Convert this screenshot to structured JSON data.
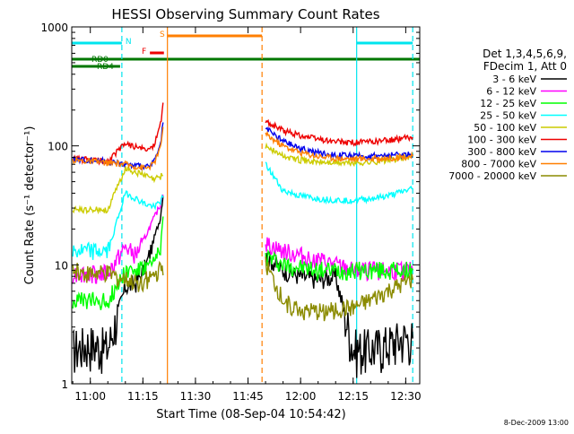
{
  "chart_data": {
    "type": "line",
    "title": "HESSI Observing Summary Count Rates",
    "xlabel": "Start Time (08-Sep-04 10:54:42)",
    "ylabel": "Count Rate (s⁻¹ detector⁻¹)",
    "yscale": "log",
    "ylim": [
      1,
      1000
    ],
    "xlim": [
      "10:54:42",
      "12:34:00"
    ],
    "x_ticks": [
      "11:00",
      "11:15",
      "11:30",
      "11:45",
      "12:00",
      "12:15",
      "12:30"
    ],
    "y_ticks": [
      "1",
      "10",
      "100",
      "1000"
    ],
    "grid": false,
    "legend_position": "right",
    "legend_header": [
      "Det 1,3,4,5,6,9,",
      "FDecim 1, Att 0"
    ],
    "date_stamp": "8-Dec-2009 13:00",
    "flags": [
      {
        "label": "N",
        "color": "#00e5ee",
        "start": "10:54:42",
        "end": "11:09:00"
      },
      {
        "label": "S",
        "color": "#ff7f00",
        "start": "11:22:00",
        "end": "11:49:00"
      },
      {
        "label": "F",
        "color": "#ee0000",
        "start": "11:17:00",
        "end": "11:21:00"
      },
      {
        "label": "RD0",
        "color": "#007700",
        "start": "10:54:42",
        "end": "12:34:00"
      },
      {
        "label": "RD4",
        "color": "#007700",
        "start": "10:54:42",
        "end": "11:08:30"
      }
    ],
    "vertical_markers": [
      {
        "time": "11:09:00",
        "color": "#00e5ee",
        "style": "dashed"
      },
      {
        "time": "11:22:00",
        "color": "#ff7f00",
        "style": "solid"
      },
      {
        "time": "11:49:00",
        "color": "#ff7f00",
        "style": "dashed"
      },
      {
        "time": "12:16:00",
        "color": "#00e5ee",
        "style": "solid"
      },
      {
        "time": "12:32:00",
        "color": "#00e5ee",
        "style": "dashed"
      }
    ],
    "gap": [
      "11:22:00",
      "11:49:00"
    ],
    "series": [
      {
        "name": "3 - 6 keV",
        "color": "#000000",
        "x": [
          "10:55",
          "11:00",
          "11:05",
          "11:10",
          "11:13",
          "11:16",
          "11:18",
          "11:20",
          "11:21",
          "11:50",
          "11:55",
          "12:00",
          "12:05",
          "12:10",
          "12:15",
          "12:20",
          "12:25",
          "12:30",
          "12:32"
        ],
        "y": [
          2.0,
          2.2,
          2.0,
          6.5,
          7.0,
          10,
          16,
          25,
          45,
          12,
          9,
          8,
          7.5,
          8,
          2,
          2,
          2.2,
          2.5,
          2.4
        ]
      },
      {
        "name": "6 - 12 keV",
        "color": "#ff00ff",
        "x": [
          "10:55",
          "11:00",
          "11:05",
          "11:10",
          "11:13",
          "11:16",
          "11:18",
          "11:20",
          "11:21",
          "11:50",
          "11:55",
          "12:00",
          "12:05",
          "12:10",
          "12:15",
          "12:20",
          "12:25",
          "12:30",
          "12:32"
        ],
        "y": [
          8.5,
          8.5,
          8.5,
          14,
          12,
          18,
          24,
          32,
          45,
          15,
          13,
          12,
          11,
          10,
          9,
          9,
          9,
          9,
          9
        ]
      },
      {
        "name": "12 - 25 keV",
        "color": "#00ff00",
        "x": [
          "10:55",
          "11:00",
          "11:05",
          "11:10",
          "11:13",
          "11:16",
          "11:18",
          "11:20",
          "11:21",
          "11:50",
          "11:55",
          "12:00",
          "12:05",
          "12:10",
          "12:15",
          "12:20",
          "12:25",
          "12:30",
          "12:32"
        ],
        "y": [
          5,
          5,
          5,
          9,
          9,
          9.5,
          10,
          14,
          30,
          12,
          10,
          9.5,
          9,
          9,
          9,
          9,
          9,
          9,
          9
        ]
      },
      {
        "name": "25 - 50 keV",
        "color": "#00ffff",
        "x": [
          "10:55",
          "11:00",
          "11:05",
          "11:10",
          "11:13",
          "11:16",
          "11:18",
          "11:20",
          "11:21",
          "11:50",
          "11:55",
          "12:00",
          "12:05",
          "12:10",
          "12:15",
          "12:20",
          "12:25",
          "12:30",
          "12:32"
        ],
        "y": [
          13,
          13,
          13,
          40,
          36,
          32,
          31,
          34,
          38,
          70,
          42,
          38,
          36,
          35,
          35,
          36,
          38,
          42,
          44
        ]
      },
      {
        "name": "50 - 100 keV",
        "color": "#cccc00",
        "x": [
          "10:55",
          "11:00",
          "11:05",
          "11:10",
          "11:13",
          "11:16",
          "11:18",
          "11:20",
          "11:21",
          "11:50",
          "11:55",
          "12:00",
          "12:05",
          "12:10",
          "12:15",
          "12:20",
          "12:25",
          "12:30",
          "12:32"
        ],
        "y": [
          29,
          29,
          29,
          65,
          60,
          56,
          52,
          55,
          60,
          100,
          82,
          76,
          73,
          72,
          72,
          73,
          76,
          80,
          82
        ]
      },
      {
        "name": "100 - 300 keV",
        "color": "#ee0000",
        "x": [
          "10:55",
          "11:00",
          "11:05",
          "11:10",
          "11:13",
          "11:16",
          "11:18",
          "11:20",
          "11:21",
          "11:50",
          "11:55",
          "12:00",
          "12:05",
          "12:10",
          "12:15",
          "12:20",
          "12:25",
          "12:30",
          "12:32"
        ],
        "y": [
          78,
          76,
          74,
          105,
          98,
          92,
          100,
          150,
          250,
          160,
          135,
          122,
          114,
          108,
          107,
          108,
          112,
          116,
          118
        ]
      },
      {
        "name": "300 - 800 keV",
        "color": "#0000ee",
        "x": [
          "10:55",
          "11:00",
          "11:05",
          "11:10",
          "11:13",
          "11:16",
          "11:18",
          "11:20",
          "11:21",
          "11:50",
          "11:55",
          "12:00",
          "12:05",
          "12:10",
          "12:15",
          "12:20",
          "12:25",
          "12:30",
          "12:32"
        ],
        "y": [
          78,
          76,
          74,
          70,
          68,
          66,
          72,
          100,
          180,
          140,
          110,
          95,
          88,
          84,
          82,
          82,
          83,
          85,
          85
        ]
      },
      {
        "name": "800 - 7000 keV",
        "color": "#ff7f00",
        "x": [
          "10:55",
          "11:00",
          "11:05",
          "11:10",
          "11:13",
          "11:16",
          "11:18",
          "11:20",
          "11:21",
          "11:50",
          "11:55",
          "12:00",
          "12:05",
          "12:10",
          "12:15",
          "12:20",
          "12:25",
          "12:30",
          "12:32"
        ],
        "y": [
          76,
          74,
          72,
          70,
          67,
          65,
          70,
          95,
          170,
          125,
          100,
          88,
          82,
          79,
          78,
          78,
          79,
          81,
          82
        ]
      },
      {
        "name": "7000 - 20000 keV",
        "color": "#8b8b00",
        "x": [
          "10:55",
          "11:00",
          "11:05",
          "11:10",
          "11:13",
          "11:16",
          "11:18",
          "11:20",
          "11:21",
          "11:50",
          "11:55",
          "12:00",
          "12:05",
          "12:10",
          "12:15",
          "12:20",
          "12:25",
          "12:30",
          "12:32"
        ],
        "y": [
          9,
          8.5,
          8.5,
          7.5,
          7,
          7.5,
          8,
          9,
          10,
          10,
          5,
          4.2,
          4,
          4.2,
          4.3,
          5,
          6,
          7,
          7.5
        ]
      }
    ]
  }
}
